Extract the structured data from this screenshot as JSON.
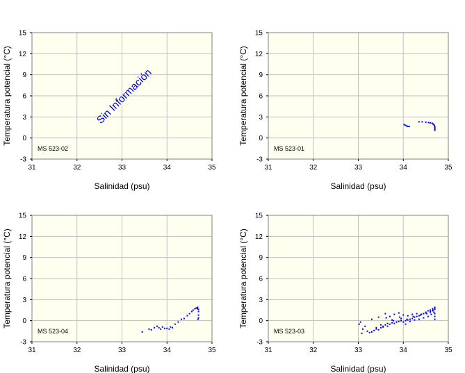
{
  "chart_data": [
    {
      "type": "scatter",
      "station": "MS 523-02",
      "xlabel": "Salinidad (psu)",
      "ylabel": "Temperatura potencial (°C)",
      "xlim": [
        31,
        35
      ],
      "ylim": [
        -3,
        15
      ],
      "xticks": [
        "31",
        "32",
        "33",
        "34",
        "35"
      ],
      "yticks": [
        "-3",
        "0",
        "3",
        "6",
        "9",
        "12",
        "15"
      ],
      "grid": true,
      "annotation": "Sin Información",
      "series": [
        {
          "color": "#0000ff",
          "x": [],
          "y": []
        }
      ]
    },
    {
      "type": "scatter",
      "station": "MS 523-01",
      "xlabel": "Salinidad (psu)",
      "ylabel": "Temperatura potencial (°C)",
      "xlim": [
        31,
        35
      ],
      "ylim": [
        -3,
        15
      ],
      "xticks": [
        "31",
        "32",
        "33",
        "34",
        "35"
      ],
      "yticks": [
        "-3",
        "0",
        "3",
        "6",
        "9",
        "12",
        "15"
      ],
      "grid": true,
      "annotation": "",
      "series": [
        {
          "color": "#0000ff",
          "x": [
            34.02,
            34.05,
            34.08,
            34.1,
            34.13,
            34.35,
            34.42,
            34.5,
            34.56,
            34.6,
            34.64,
            34.66,
            34.68,
            34.69,
            34.7,
            34.7,
            34.7,
            34.7,
            34.7
          ],
          "y": [
            1.9,
            1.8,
            1.7,
            1.65,
            1.65,
            2.3,
            2.3,
            2.25,
            2.2,
            2.15,
            2.1,
            2.0,
            1.9,
            1.75,
            1.6,
            1.45,
            1.3,
            1.2,
            1.1
          ]
        }
      ]
    },
    {
      "type": "scatter",
      "station": "MS 523-04",
      "xlabel": "Salinidad (psu)",
      "ylabel": "Temperatura potencial (°C)",
      "xlim": [
        31,
        35
      ],
      "ylim": [
        -3,
        15
      ],
      "xticks": [
        "31",
        "32",
        "33",
        "34",
        "35"
      ],
      "yticks": [
        "-3",
        "0",
        "3",
        "6",
        "9",
        "12",
        "15"
      ],
      "grid": true,
      "annotation": "",
      "series": [
        {
          "color": "#0000ff",
          "x": [
            33.45,
            33.6,
            33.65,
            33.72,
            33.78,
            33.82,
            33.86,
            33.9,
            33.95,
            34.0,
            34.05,
            34.08,
            34.12,
            34.18,
            34.25,
            34.32,
            34.38,
            34.45,
            34.5,
            34.55,
            34.58,
            34.62,
            34.65,
            34.67,
            34.68,
            34.7,
            34.7,
            34.7,
            34.7,
            34.69,
            34.68
          ],
          "y": [
            -1.6,
            -1.2,
            -1.3,
            -1.0,
            -0.8,
            -1.0,
            -1.2,
            -0.9,
            -1.1,
            -1.1,
            -1.2,
            -0.9,
            -1.0,
            -0.5,
            -0.2,
            0.2,
            0.3,
            0.7,
            1.0,
            1.3,
            1.5,
            1.7,
            1.8,
            1.8,
            1.7,
            1.6,
            1.3,
            0.8,
            0.4,
            0.2,
            1.9
          ]
        }
      ]
    },
    {
      "type": "scatter",
      "station": "MS 523-03",
      "xlabel": "Salinidad (psu)",
      "ylabel": "Temperatura potencial (°C)",
      "xlim": [
        31,
        35
      ],
      "ylim": [
        -3,
        15
      ],
      "xticks": [
        "31",
        "32",
        "33",
        "34",
        "35"
      ],
      "yticks": [
        "-3",
        "0",
        "3",
        "6",
        "9",
        "12",
        "15"
      ],
      "grid": true,
      "annotation": "",
      "series": [
        {
          "color": "#0000ff",
          "x": [
            33.02,
            33.05,
            33.08,
            33.1,
            33.15,
            33.2,
            33.25,
            33.3,
            33.35,
            33.4,
            33.45,
            33.5,
            33.55,
            33.6,
            33.65,
            33.7,
            33.75,
            33.8,
            33.85,
            33.9,
            33.95,
            34.0,
            34.05,
            34.1,
            34.15,
            34.2,
            34.25,
            34.3,
            34.35,
            34.4,
            34.45,
            34.5,
            34.55,
            34.6,
            34.65,
            34.7,
            33.3,
            33.45,
            33.6,
            33.7,
            33.8,
            33.9,
            34.0,
            34.1,
            34.2,
            34.3,
            34.4,
            34.5,
            34.6,
            34.65,
            34.7,
            33.55,
            33.65,
            33.75,
            33.85,
            33.95,
            34.05,
            34.15,
            34.25,
            34.35,
            34.45,
            34.55,
            34.62,
            34.68,
            33.4,
            33.5,
            33.62,
            33.78,
            33.92,
            34.08,
            34.22,
            34.38,
            34.52,
            34.6,
            34.66,
            34.7,
            34.7,
            34.7,
            34.7
          ],
          "y": [
            -0.5,
            -0.2,
            -1.8,
            -1.2,
            -0.8,
            -1.5,
            -1.7,
            -1.6,
            -1.4,
            -1.2,
            -1.3,
            -1.0,
            -0.9,
            -0.6,
            -0.8,
            -0.5,
            -0.3,
            -0.4,
            -0.2,
            -0.1,
            0.0,
            -0.2,
            0.0,
            0.1,
            0.2,
            0.3,
            0.5,
            0.6,
            0.7,
            0.9,
            1.0,
            1.2,
            1.4,
            1.5,
            1.7,
            1.8,
            0.2,
            0.5,
            1.0,
            0.6,
            0.9,
            1.1,
            0.8,
            0.7,
            0.9,
            1.0,
            0.9,
            1.1,
            1.3,
            1.4,
            1.6,
            -0.8,
            -0.4,
            0.1,
            -0.2,
            0.3,
            -0.5,
            -0.1,
            0.1,
            0.2,
            0.4,
            0.6,
            0.9,
            1.2,
            -1.0,
            -0.6,
            0.4,
            0.0,
            0.5,
            0.2,
            0.6,
            0.8,
            1.0,
            1.2,
            1.5,
            1.0,
            0.6,
            0.2,
            1.9
          ]
        }
      ]
    }
  ]
}
